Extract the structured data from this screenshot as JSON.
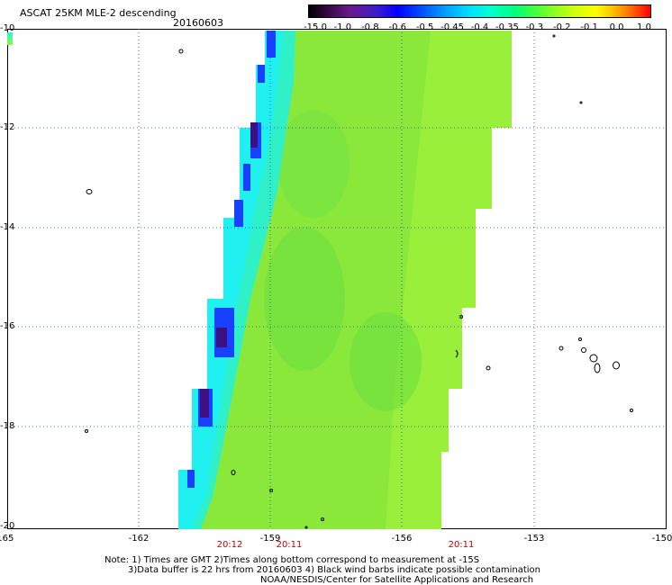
{
  "header": {
    "title": "ASCAT 25KM MLE-2 descending",
    "date": "20160603"
  },
  "colorbar": {
    "labels": [
      "-15.0",
      "-1.0",
      "-0.8",
      "-0.6",
      "-0.5",
      "-0.45",
      "-0.4",
      "-0.35",
      "-0.3",
      "-0.2",
      "-0.1",
      "0.0",
      "1.0"
    ]
  },
  "axes": {
    "y_labels": [
      "-10",
      "-12",
      "-14",
      "-16",
      "-18",
      "-20"
    ],
    "x_labels": [
      "-165",
      "-162",
      "-159",
      "-156",
      "-153",
      "-150"
    ]
  },
  "times": [
    "20:12",
    "20:11",
    "20:11"
  ],
  "notes": {
    "line1": "Note: 1) Times are GMT 2)Times along bottom correspond to measurement at -15S",
    "line2": "3)Data buffer is 22 hrs from 20160603 4) Black wind barbs indicate possible contamination",
    "line3": "NOAA/NESDIS/Center for Satellite Applications and Research"
  },
  "colors": {
    "swath_main": "#8ae83a",
    "swath_cyan": "#28f0e0",
    "swath_blue": "#1a30ff",
    "swath_purple": "#4a1080",
    "grid": "#3040c0"
  }
}
